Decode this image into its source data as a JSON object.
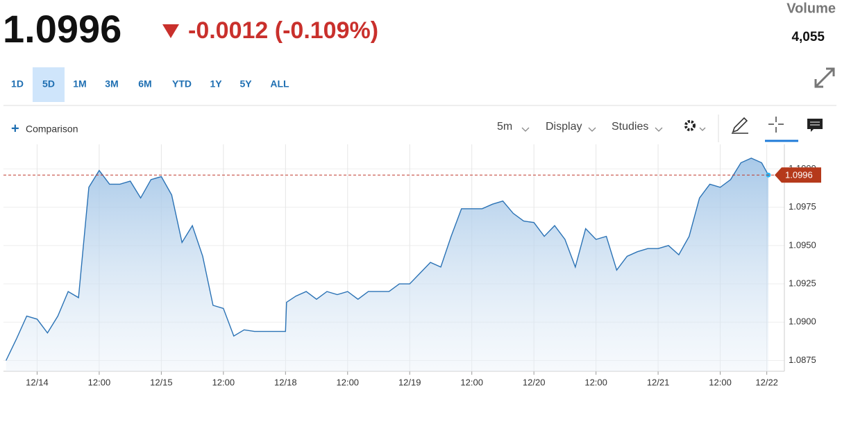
{
  "header": {
    "price": "1.0996",
    "change": "-0.0012 (-0.109%)",
    "volume_label": "Volume",
    "volume": "4,055"
  },
  "ranges": [
    "1D",
    "5D",
    "1M",
    "3M",
    "6M",
    "YTD",
    "1Y",
    "5Y",
    "ALL"
  ],
  "active_range": "5D",
  "toolbar": {
    "comparison": "Comparison",
    "interval": "5m",
    "display": "Display",
    "studies": "Studies"
  },
  "chart_data": {
    "type": "area",
    "x": [
      -6,
      -4,
      -2,
      0,
      2,
      4,
      6,
      8,
      10,
      12,
      14,
      16,
      18,
      20,
      22,
      24,
      26,
      28,
      30,
      32,
      34,
      36,
      38,
      40,
      42,
      44,
      46,
      48,
      48.2,
      50,
      52,
      54,
      56,
      58,
      60,
      62,
      64,
      66,
      68,
      70,
      72,
      74,
      76,
      78,
      80,
      82,
      84,
      86,
      88,
      90,
      92,
      94,
      96,
      98,
      100,
      102,
      104,
      106,
      108,
      110,
      112,
      114,
      116,
      118,
      120,
      122,
      124,
      126,
      128,
      130,
      132,
      134,
      136,
      138,
      140,
      141.3
    ],
    "values": [
      1.0875,
      1.0889,
      1.0904,
      1.0902,
      1.0893,
      1.0904,
      1.092,
      1.0916,
      1.0988,
      1.0999,
      1.099,
      1.099,
      1.0992,
      1.0981,
      1.0993,
      1.0995,
      1.0983,
      1.0952,
      1.0963,
      1.0943,
      1.0911,
      1.0909,
      1.0891,
      1.0895,
      1.0894,
      1.0894,
      1.0894,
      1.0894,
      1.0913,
      1.0917,
      1.092,
      1.0915,
      1.092,
      1.0918,
      1.092,
      1.0915,
      1.092,
      1.092,
      1.092,
      1.0925,
      1.0925,
      1.0932,
      1.0939,
      1.0936,
      1.0956,
      1.0974,
      1.0974,
      1.0974,
      1.0977,
      1.0979,
      1.0971,
      1.0966,
      1.0965,
      1.0956,
      1.0963,
      1.0954,
      1.0936,
      1.0961,
      1.0954,
      1.0956,
      1.0934,
      1.0943,
      1.0946,
      1.0948,
      1.0948,
      1.095,
      1.0944,
      1.0956,
      1.0981,
      1.099,
      1.0988,
      1.0993,
      1.1004,
      1.1007,
      1.1004,
      1.0996
    ],
    "color": "#2a72b5",
    "price_line": 1.0996,
    "price_line_color": "#c0392b",
    "xlim": [
      -6.5,
      144.4
    ],
    "xticks": [
      {
        "value": 0,
        "label": "12/14"
      },
      {
        "value": 12,
        "label": "12:00"
      },
      {
        "value": 24,
        "label": "12/15"
      },
      {
        "value": 36,
        "label": "12:00"
      },
      {
        "value": 48,
        "label": "12/18"
      },
      {
        "value": 60,
        "label": "12:00"
      },
      {
        "value": 72,
        "label": "12/19"
      },
      {
        "value": 84,
        "label": "12:00"
      },
      {
        "value": 96,
        "label": "12/20"
      },
      {
        "value": 108,
        "label": "12:00"
      },
      {
        "value": 120,
        "label": "12/21"
      },
      {
        "value": 132,
        "label": "12:00"
      },
      {
        "value": 141,
        "label": "12/22"
      }
    ],
    "ylim": [
      1.0868,
      1.1016
    ],
    "yticks": [
      1.0875,
      {
        "value": 1.09,
        "label": "1.0900"
      },
      1.0925,
      {
        "value": 1.095,
        "label": "1.0950"
      },
      1.0975,
      {
        "value": 1.1,
        "label": "1.1000"
      }
    ],
    "grid": true
  }
}
